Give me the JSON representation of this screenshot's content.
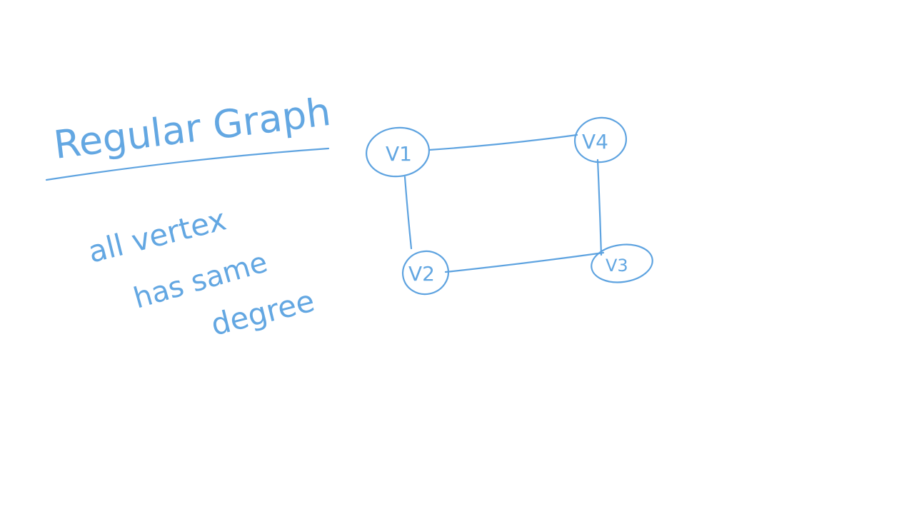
{
  "title": "Regular Graph",
  "note_lines": [
    "all vertex",
    "has same",
    "degree"
  ],
  "colors": {
    "ink": "#5ea3e0",
    "background": "#ffffff"
  },
  "graph": {
    "vertices": [
      {
        "id": "v1",
        "label": "V1"
      },
      {
        "id": "v2",
        "label": "V2"
      },
      {
        "id": "v3",
        "label": "V3"
      },
      {
        "id": "v4",
        "label": "V4"
      }
    ],
    "edges": [
      {
        "from": "v1",
        "to": "v4"
      },
      {
        "from": "v1",
        "to": "v2"
      },
      {
        "from": "v2",
        "to": "v3"
      },
      {
        "from": "v4",
        "to": "v3"
      }
    ]
  }
}
